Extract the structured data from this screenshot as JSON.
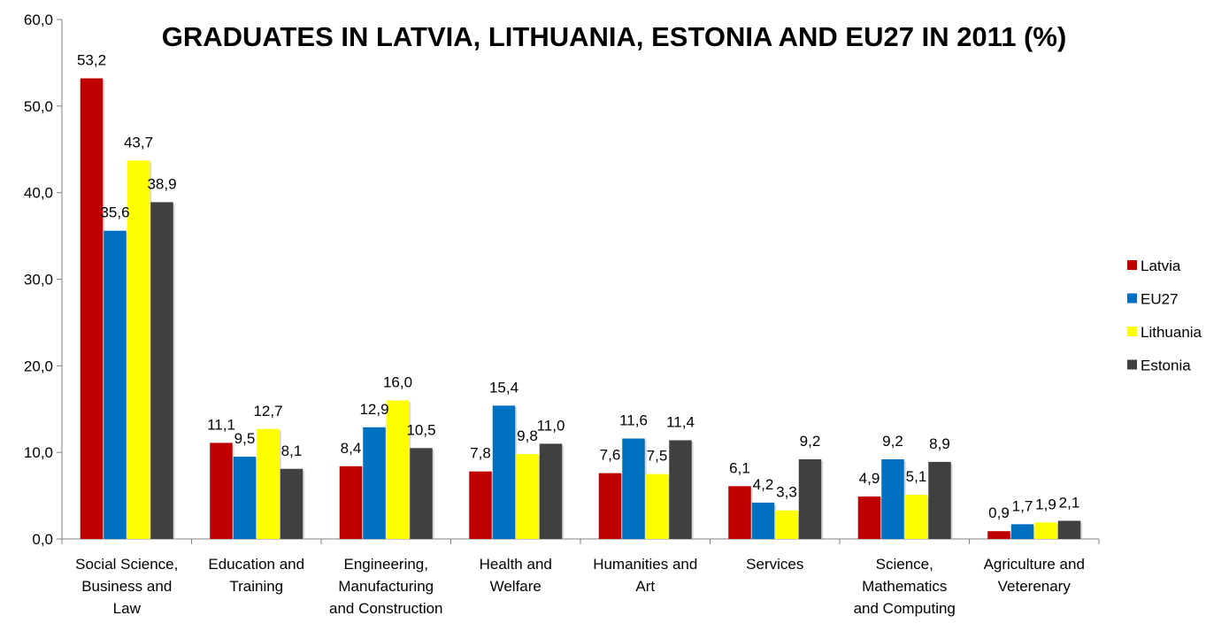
{
  "chart_data": {
    "type": "bar",
    "title": "GRADUATES IN LATVIA, LITHUANIA, ESTONIA AND EU27 IN 2011 (%)",
    "xlabel": "",
    "ylabel": "",
    "ylim": [
      0,
      60
    ],
    "yticks": [
      "0,0",
      "10,0",
      "20,0",
      "30,0",
      "40,0",
      "50,0",
      "60,0"
    ],
    "ytick_values": [
      0,
      10,
      20,
      30,
      40,
      50,
      60
    ],
    "grid": false,
    "legend_position": "right",
    "categories": [
      [
        "Social Science,",
        "Business and",
        "Law"
      ],
      [
        "Education and",
        "Training"
      ],
      [
        "Engineering,",
        "Manufacturing",
        "and Construction"
      ],
      [
        "Health and",
        "Welfare"
      ],
      [
        "Humanities and",
        "Art"
      ],
      [
        "Services"
      ],
      [
        "Science,",
        "Mathematics",
        "and Computing"
      ],
      [
        "Agriculture and",
        "Veterenary"
      ]
    ],
    "series": [
      {
        "name": "Latvia",
        "color": "#c00000",
        "values": [
          53.2,
          11.1,
          8.4,
          7.8,
          7.6,
          6.1,
          4.9,
          0.9
        ],
        "labels": [
          "53,2",
          "11,1",
          "8,4",
          "7,8",
          "7,6",
          "6,1",
          "4,9",
          "0,9"
        ]
      },
      {
        "name": "EU27",
        "color": "#0070c0",
        "values": [
          35.6,
          9.5,
          12.9,
          15.4,
          11.6,
          4.2,
          9.2,
          1.7
        ],
        "labels": [
          "35,6",
          "9,5",
          "12,9",
          "15,4",
          "11,6",
          "4,2",
          "9,2",
          "1,7"
        ]
      },
      {
        "name": "Lithuania",
        "color": "#ffff00",
        "values": [
          43.7,
          12.7,
          16.0,
          9.8,
          7.5,
          3.3,
          5.1,
          1.9
        ],
        "labels": [
          "43,7",
          "12,7",
          "16,0",
          "9,8",
          "7,5",
          "3,3",
          "5,1",
          "1,9"
        ]
      },
      {
        "name": "Estonia",
        "color": "#404040",
        "values": [
          38.9,
          8.1,
          10.5,
          11.0,
          11.4,
          9.2,
          8.9,
          2.1
        ],
        "labels": [
          "38,9",
          "8,1",
          "10,5",
          "11,0",
          "11,4",
          "9,2",
          "8,9",
          "2,1"
        ]
      }
    ]
  }
}
